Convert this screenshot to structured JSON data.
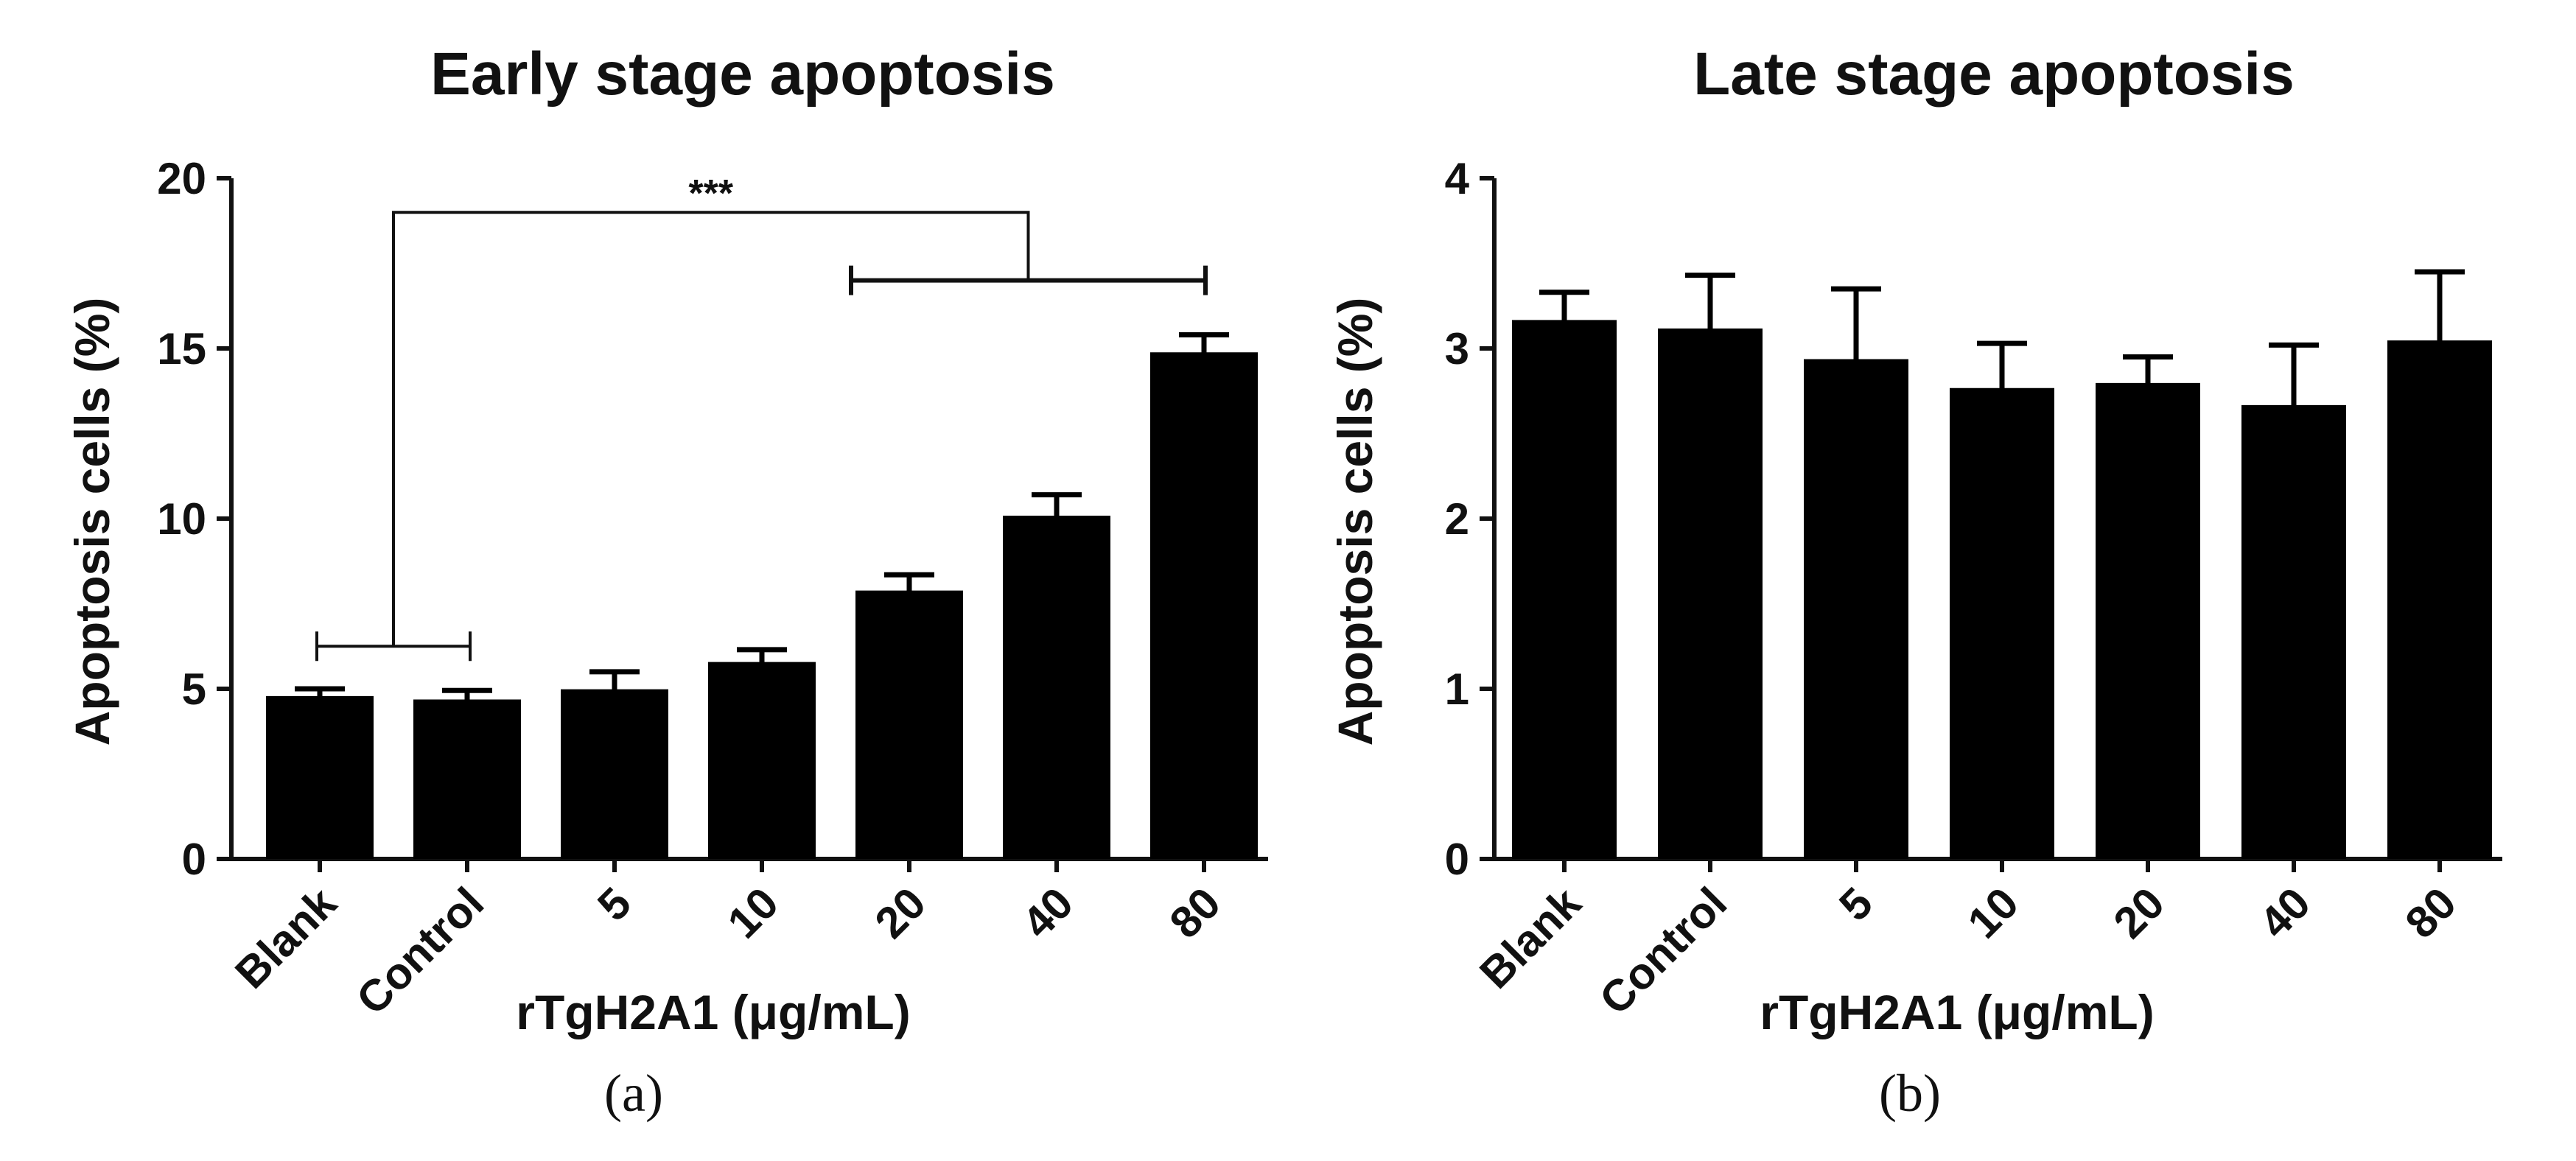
{
  "chart_data": [
    {
      "type": "bar",
      "panel_label": "(a)",
      "title": "Early stage apoptosis",
      "xlabel": "rTgH2A1 (μg/mL)",
      "ylabel": "Apoptosis cells (%)",
      "categories": [
        "Blank",
        "Control",
        "5",
        "10",
        "20",
        "40",
        "80"
      ],
      "values": [
        4.7,
        4.6,
        4.9,
        5.7,
        7.8,
        10.0,
        14.8
      ],
      "errors": [
        0.3,
        0.35,
        0.6,
        0.45,
        0.55,
        0.7,
        0.6
      ],
      "ylim": [
        0,
        20
      ],
      "yticks": [
        "0",
        "5",
        "10",
        "15",
        "20"
      ],
      "bar_color": "#000000",
      "grid": false,
      "annotation": {
        "text": "***",
        "group_a": [
          "Blank",
          "Control"
        ],
        "group_b": [
          "20",
          "40",
          "80"
        ]
      }
    },
    {
      "type": "bar",
      "panel_label": "(b)",
      "title": "Late stage apoptosis",
      "xlabel": "rTgH2A1 (μg/mL)",
      "ylabel": "Apoptosis cells (%)",
      "categories": [
        "Blank",
        "Control",
        "5",
        "10",
        "20",
        "40",
        "80"
      ],
      "values": [
        3.15,
        3.1,
        2.92,
        2.75,
        2.78,
        2.65,
        3.03
      ],
      "errors": [
        0.18,
        0.33,
        0.43,
        0.28,
        0.17,
        0.37,
        0.42
      ],
      "ylim": [
        0,
        4
      ],
      "yticks": [
        "0",
        "1",
        "2",
        "3",
        "4"
      ],
      "bar_color": "#000000",
      "grid": false
    }
  ]
}
